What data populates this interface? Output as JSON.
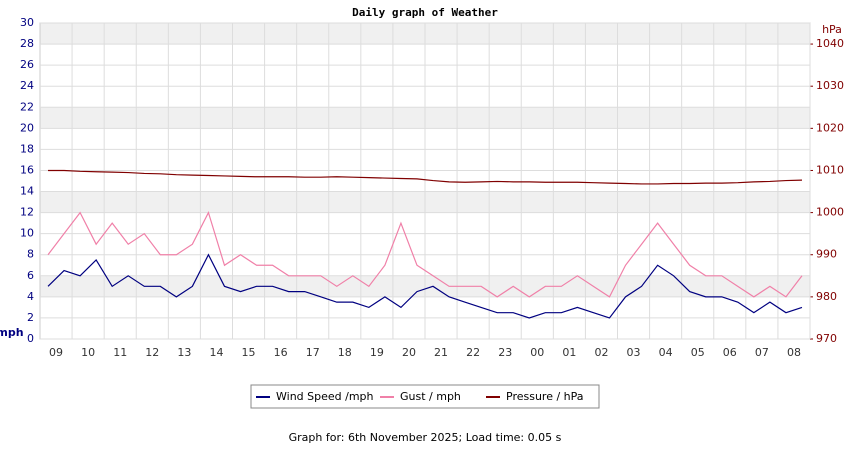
{
  "chart_data": {
    "type": "line",
    "title": "Daily graph of Weather",
    "y_label": "mph",
    "y2_label": "hPa",
    "categories": [
      "09",
      null,
      "10",
      null,
      "11",
      null,
      "12",
      null,
      "13",
      null,
      "14",
      null,
      "15",
      null,
      "16",
      null,
      "17",
      null,
      "18",
      null,
      "19",
      null,
      "20",
      null,
      "21",
      null,
      "22",
      null,
      "23",
      null,
      "00",
      null,
      "01",
      null,
      "02",
      null,
      "03",
      null,
      "04",
      null,
      "05",
      null,
      "06",
      null,
      "07",
      null,
      "08",
      null
    ],
    "ylim": [
      0,
      30
    ],
    "yticks": [
      0,
      2,
      4,
      6,
      8,
      10,
      12,
      14,
      16,
      18,
      20,
      22,
      24,
      26,
      28,
      30
    ],
    "y2lim": [
      970,
      1045
    ],
    "y2ticks": [
      970,
      980,
      990,
      1000,
      1010,
      1020,
      1030,
      1040
    ],
    "grid": true,
    "series": [
      {
        "name": "Wind Speed /mph",
        "color": "#000080",
        "values": [
          5,
          6.5,
          6,
          7.5,
          5,
          6,
          5,
          5,
          4,
          5,
          8,
          5,
          4.5,
          5,
          5,
          4.5,
          4.5,
          4,
          3.5,
          3.5,
          3,
          4,
          3,
          4.5,
          5,
          4,
          3.5,
          3,
          2.5,
          2.5,
          2,
          2.5,
          2.5,
          3,
          2.5,
          2,
          4,
          5,
          7,
          6,
          4.5,
          4,
          4,
          3.5,
          2.5,
          3.5,
          2.5,
          3
        ]
      },
      {
        "name": "Gust / mph",
        "color": "#f080a8",
        "values": [
          8,
          10,
          12,
          9,
          11,
          9,
          10,
          8,
          8,
          9,
          12,
          7,
          8,
          7,
          7,
          6,
          6,
          6,
          5,
          6,
          5,
          7,
          11,
          7,
          6,
          5,
          5,
          5,
          4,
          5,
          4,
          5,
          5,
          6,
          5,
          4,
          7,
          9,
          11,
          9,
          7,
          6,
          6,
          5,
          4,
          5,
          4,
          6
        ]
      },
      {
        "name": "Pressure / hPa",
        "color": "#800000",
        "axis": "y2",
        "values": [
          1010,
          1010,
          1009.8,
          1009.7,
          1009.6,
          1009.5,
          1009.3,
          1009.2,
          1009,
          1008.9,
          1008.8,
          1008.7,
          1008.6,
          1008.5,
          1008.5,
          1008.5,
          1008.4,
          1008.4,
          1008.5,
          1008.4,
          1008.3,
          1008.2,
          1008.1,
          1008.0,
          1007.6,
          1007.3,
          1007.2,
          1007.3,
          1007.4,
          1007.3,
          1007.3,
          1007.2,
          1007.2,
          1007.2,
          1007.1,
          1007.0,
          1006.9,
          1006.8,
          1006.8,
          1006.9,
          1006.9,
          1007.0,
          1007.0,
          1007.1,
          1007.3,
          1007.4,
          1007.6,
          1007.7
        ]
      }
    ]
  },
  "footer": "Graph for: 6th November 2025; Load time: 0.05 s"
}
